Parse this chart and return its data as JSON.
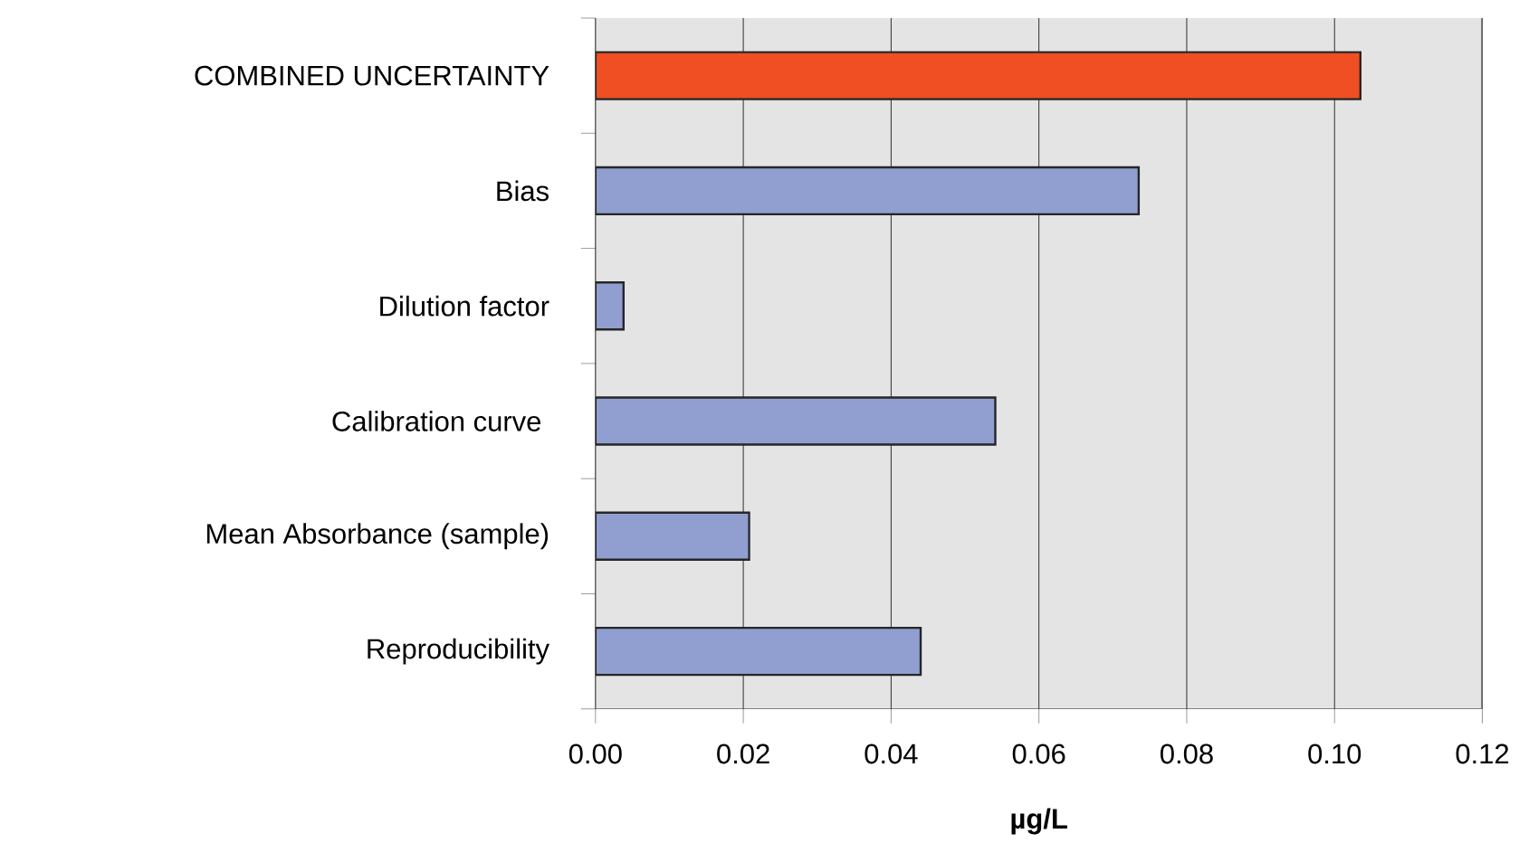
{
  "chart_data": {
    "type": "bar",
    "orientation": "horizontal",
    "xlabel": "µg/L",
    "categories": [
      "COMBINED UNCERTAINTY",
      "Bias",
      "Dilution factor",
      "Calibration curve ",
      "Mean Absorbance (sample)",
      "Reproducibility"
    ],
    "values": [
      0.1035,
      0.0735,
      0.0038,
      0.0541,
      0.0208,
      0.044
    ],
    "colors": [
      "#f04e23",
      "#909ed0",
      "#909ed0",
      "#909ed0",
      "#909ed0",
      "#909ed0"
    ],
    "xlim": [
      0,
      0.12
    ],
    "xticks": [
      {
        "value": 0,
        "label": "0.00"
      },
      {
        "value": 0.02,
        "label": "0.02"
      },
      {
        "value": 0.04,
        "label": "0.04"
      },
      {
        "value": 0.06,
        "label": "0.06"
      },
      {
        "value": 0.08,
        "label": "0.08"
      },
      {
        "value": 0.1,
        "label": "0.10"
      },
      {
        "value": 0.12,
        "label": "0.12"
      }
    ],
    "grid": "x"
  }
}
